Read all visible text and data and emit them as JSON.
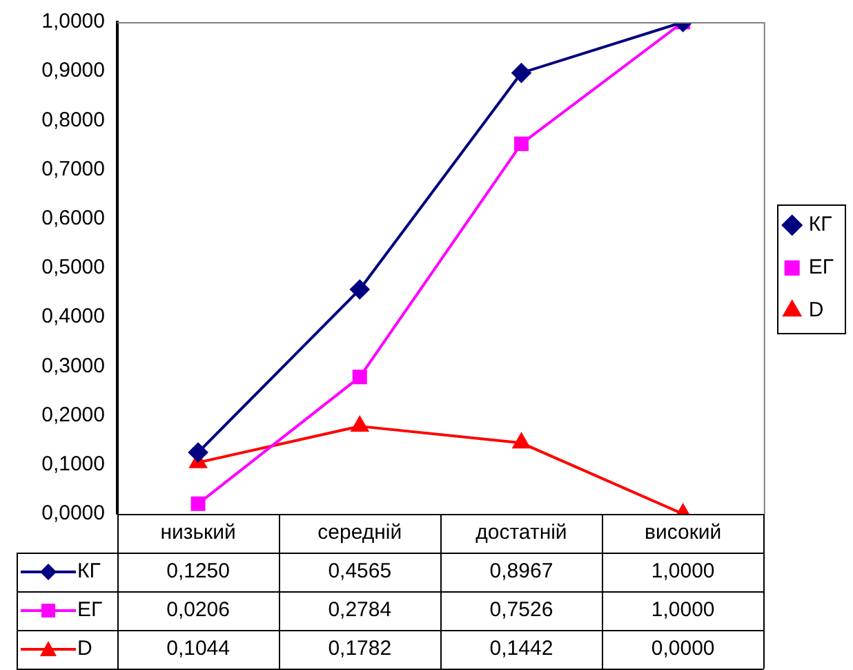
{
  "chart_data": {
    "type": "line",
    "categories": [
      "низький",
      "середній",
      "достатній",
      "високий"
    ],
    "series": [
      {
        "name": "КГ",
        "color": "#000080",
        "marker": "diamond",
        "values": [
          0.125,
          0.4565,
          0.8967,
          1.0
        ],
        "value_labels": [
          "0,1250",
          "0,4565",
          "0,8967",
          "1,0000"
        ]
      },
      {
        "name": "ЕГ",
        "color": "#ff00ff",
        "marker": "square",
        "values": [
          0.0206,
          0.2784,
          0.7526,
          1.0
        ],
        "value_labels": [
          "0,0206",
          "0,2784",
          "0,7526",
          "1,0000"
        ]
      },
      {
        "name": "D",
        "color": "#ff0000",
        "marker": "triangle",
        "values": [
          0.1044,
          0.1782,
          0.1442,
          0.0
        ],
        "value_labels": [
          "0,1044",
          "0,1782",
          "0,1442",
          "0,0000"
        ]
      }
    ],
    "ylim": [
      0,
      1
    ],
    "yticks": [
      {
        "value": 0,
        "label": "0,0000"
      },
      {
        "value": 0.1,
        "label": "0,1000"
      },
      {
        "value": 0.2,
        "label": "0,2000"
      },
      {
        "value": 0.3,
        "label": "0,3000"
      },
      {
        "value": 0.4,
        "label": "0,4000"
      },
      {
        "value": 0.5,
        "label": "0,5000"
      },
      {
        "value": 0.6,
        "label": "0,6000"
      },
      {
        "value": 0.7,
        "label": "0,7000"
      },
      {
        "value": 0.8,
        "label": "0,8000"
      },
      {
        "value": 0.9,
        "label": "0,9000"
      },
      {
        "value": 1,
        "label": "1,0000"
      }
    ],
    "grid": false,
    "legend": "right",
    "line_style": "solid"
  }
}
